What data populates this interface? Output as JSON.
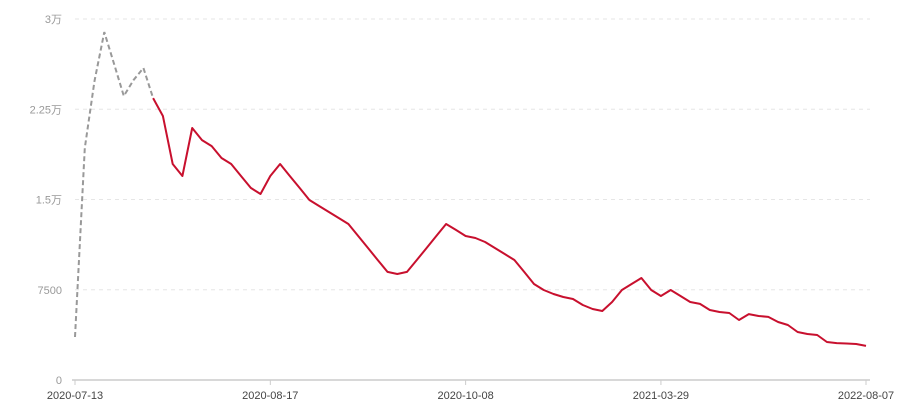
{
  "chart_data": {
    "type": "line",
    "title": "",
    "xlabel": "",
    "ylabel": "",
    "ylim": [
      0,
      30000
    ],
    "y_ticks": [
      {
        "value": 0,
        "label": "0"
      },
      {
        "value": 7500,
        "label": "7500"
      },
      {
        "value": 15000,
        "label": "1.5万"
      },
      {
        "value": 22500,
        "label": "2.25万"
      },
      {
        "value": 30000,
        "label": "3万"
      }
    ],
    "x_ticks": [
      {
        "index": 0,
        "label": "2020-07-13"
      },
      {
        "index": 20,
        "label": "2020-08-17"
      },
      {
        "index": 40,
        "label": "2020-10-08"
      },
      {
        "index": 60,
        "label": "2021-03-29"
      },
      {
        "index": 81,
        "label": "2022-08-07"
      }
    ],
    "grid": "horizontal dashed",
    "legend": "none",
    "dashed_until_index": 8,
    "colors": {
      "solid": "#c8102e",
      "dashed": "#999999",
      "grid": "#e6e6e6",
      "axis": "#cccccc"
    },
    "values": [
      3570,
      19280,
      24850,
      28910,
      26260,
      23600,
      24930,
      25930,
      23430,
      21940,
      17950,
      16950,
      20940,
      19940,
      19440,
      18450,
      17950,
      16950,
      15960,
      15460,
      16950,
      17950,
      16950,
      15960,
      14960,
      14460,
      13960,
      13460,
      12960,
      11970,
      10970,
      9970,
      8980,
      8810,
      8980,
      9970,
      10970,
      11970,
      12960,
      12470,
      11970,
      11800,
      11470,
      10970,
      10470,
      9970,
      8980,
      7980,
      7480,
      7150,
      6900,
      6730,
      6230,
      5900,
      5730,
      6480,
      7480,
      7980,
      8480,
      7480,
      6980,
      7480,
      6980,
      6480,
      6320,
      5820,
      5650,
      5570,
      4990,
      5480,
      5320,
      5240,
      4820,
      4570,
      3990,
      3820,
      3740,
      3160,
      3070,
      3030,
      2990,
      2830
    ]
  }
}
